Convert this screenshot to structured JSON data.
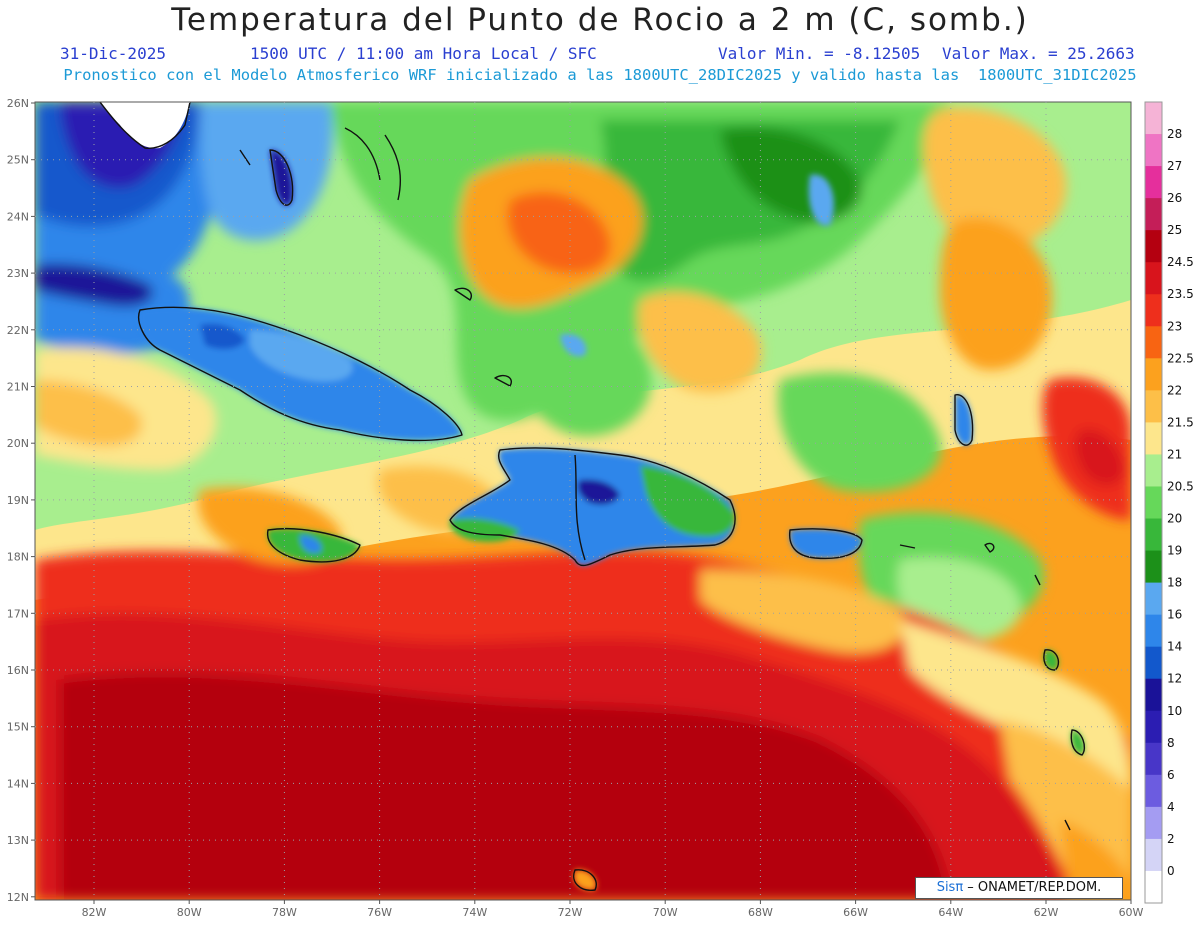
{
  "header": {
    "title": "Temperatura del Punto de Rocio a 2 m (C, somb.)",
    "date": "31-Dic-2025",
    "time_info": "1500 UTC / 11:00 am Hora Local / SFC",
    "min_value": "Valor Min. = -8.12505",
    "max_value": "Valor Max. = 25.2663",
    "model_info": "Pronostico con el Modelo Atmosferico WRF inicializado a las 1800UTC_28DIC2025 y valido hasta las  1800UTC_31DIC2025"
  },
  "map": {
    "lat_labels": [
      "26N",
      "25N",
      "24N",
      "23N",
      "22N",
      "21N",
      "20N",
      "19N",
      "18N",
      "17N",
      "16N",
      "15N",
      "14N",
      "13N",
      "12N"
    ],
    "lon_labels": [
      "82W",
      "80W",
      "78W",
      "76W",
      "74W",
      "72W",
      "70W",
      "68W",
      "66W",
      "64W",
      "62W",
      "60W"
    ]
  },
  "colorbar": {
    "levels": [
      {
        "label": "28",
        "color": "#f5b3d6"
      },
      {
        "label": "27",
        "color": "#ef74c4"
      },
      {
        "label": "26",
        "color": "#e52f9c"
      },
      {
        "label": "25",
        "color": "#c41e58"
      },
      {
        "label": "24.5",
        "color": "#b40010"
      },
      {
        "label": "23.5",
        "color": "#d8141c"
      },
      {
        "label": "23",
        "color": "#ee2f1c"
      },
      {
        "label": "22.5",
        "color": "#f86412"
      },
      {
        "label": "22",
        "color": "#fca11e"
      },
      {
        "label": "21.5",
        "color": "#fdbf48"
      },
      {
        "label": "21",
        "color": "#fde68c"
      },
      {
        "label": "20.5",
        "color": "#a8ee8e"
      },
      {
        "label": "20",
        "color": "#66d85a"
      },
      {
        "label": "19",
        "color": "#38b73a"
      },
      {
        "label": "18",
        "color": "#1c9019"
      },
      {
        "label": "16",
        "color": "#5aa8f0"
      },
      {
        "label": "14",
        "color": "#2e86ea"
      },
      {
        "label": "12",
        "color": "#1258cc"
      },
      {
        "label": "10",
        "color": "#1a1298"
      },
      {
        "label": "8",
        "color": "#2b1db2"
      },
      {
        "label": "6",
        "color": "#4836c8"
      },
      {
        "label": "4",
        "color": "#6c5ce0"
      },
      {
        "label": "2",
        "color": "#a49cf2"
      },
      {
        "label": "0",
        "color": "#d4d4f6"
      },
      {
        "label": "",
        "color": "#ffffff"
      }
    ]
  },
  "credit": {
    "logo": "Sisπ",
    "text": " – ONAMET/REP.DOM."
  }
}
